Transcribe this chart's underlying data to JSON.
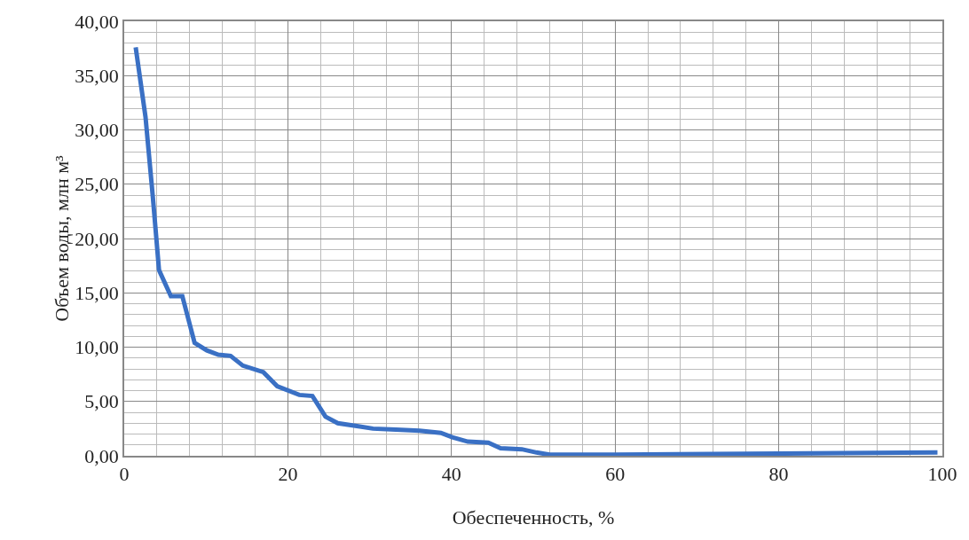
{
  "chart_data": {
    "type": "line",
    "xlabel": "Обеспеченность, %",
    "ylabel": "Объем воды, млн м³",
    "x": [
      1.4,
      2.6,
      3.5,
      4.25,
      5.7,
      7.1,
      8.6,
      10.1,
      11.5,
      13.0,
      14.5,
      17.0,
      18.7,
      21.4,
      23.0,
      24.6,
      26.1,
      28.8,
      30.4,
      33.2,
      36.1,
      38.7,
      40.1,
      42.0,
      44.5,
      46.0,
      48.6,
      50.4,
      52.0,
      60,
      80,
      99.4
    ],
    "series": [
      {
        "color": "#3a70c4",
        "values": [
          37.6,
          31.2,
          23.8,
          17.1,
          14.7,
          14.7,
          10.4,
          9.7,
          9.3,
          9.2,
          8.3,
          7.7,
          6.4,
          5.6,
          5.5,
          3.6,
          3.0,
          2.7,
          2.5,
          2.4,
          2.3,
          2.1,
          1.7,
          1.3,
          1.2,
          0.7,
          0.6,
          0.3,
          0.1,
          0.1,
          0.2,
          0.3
        ]
      }
    ],
    "xlim": [
      0,
      100
    ],
    "ylim": [
      0,
      40
    ],
    "xticks": [
      0,
      20,
      40,
      60,
      80,
      100
    ],
    "yticks": [
      {
        "value": 0,
        "label": "0,00"
      },
      {
        "value": 5,
        "label": "5,00"
      },
      {
        "value": 10,
        "label": "10,00"
      },
      {
        "value": 15,
        "label": "15,00"
      },
      {
        "value": 20,
        "label": "20,00"
      },
      {
        "value": 25,
        "label": "25,00"
      },
      {
        "value": 30,
        "label": "30,00"
      },
      {
        "value": 35,
        "label": "35,00"
      },
      {
        "value": 40,
        "label": "40,00"
      }
    ],
    "grid": true,
    "marker": "none",
    "line_style": "solid"
  }
}
